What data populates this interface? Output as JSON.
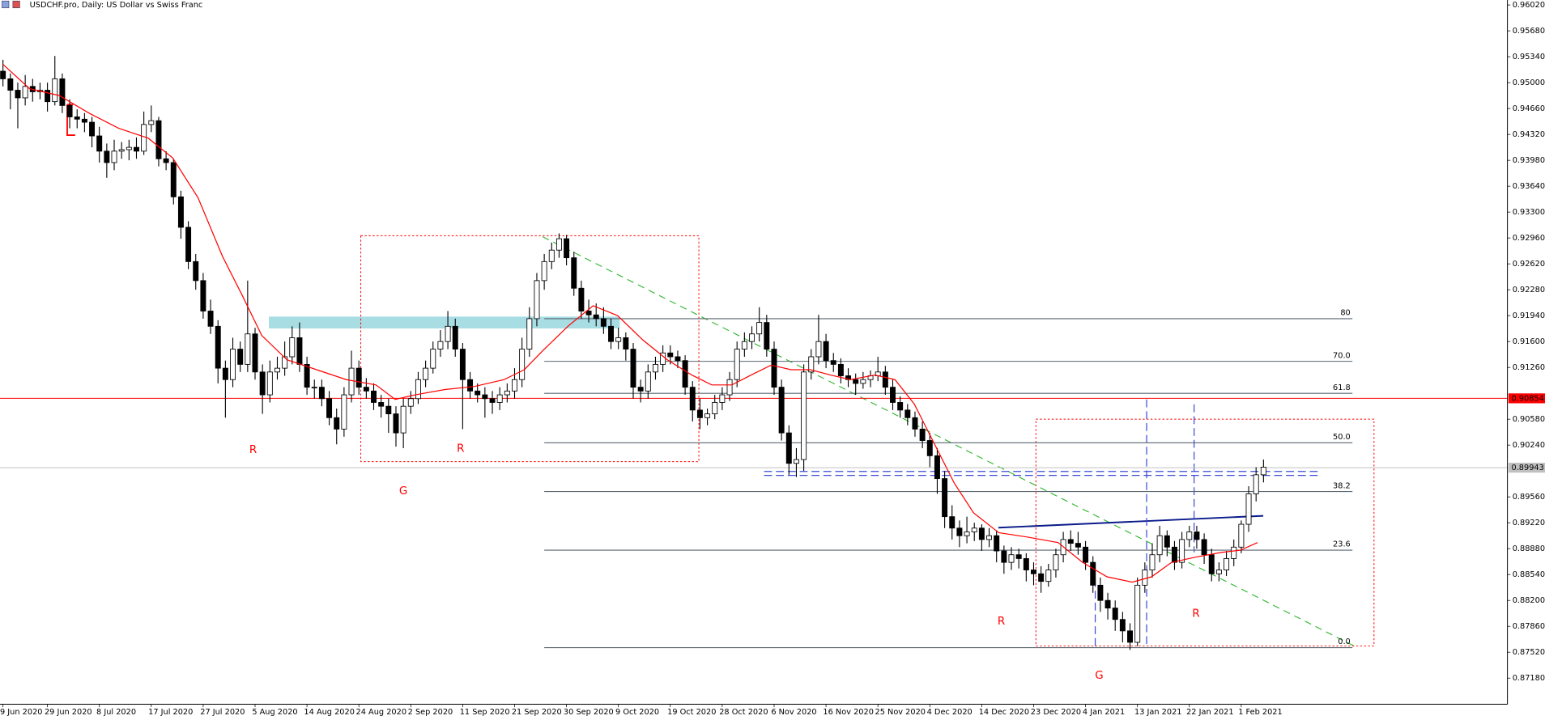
{
  "chart_data": {
    "type": "candlestick",
    "title": "USDCHF.pro, Daily:  US Dollar vs Swiss Franc",
    "xlim": [
      -0.4,
      202.9
    ],
    "ylim": [
      0.86837,
      0.96085
    ],
    "xticks": [
      {
        "value": 0,
        "label": "9 Jun 2020"
      },
      {
        "value": 6,
        "label": "29 Jun 2020"
      },
      {
        "value": 13,
        "label": "8 Jul 2020"
      },
      {
        "value": 20,
        "label": "17 Jul 2020"
      },
      {
        "value": 27,
        "label": "27 Jul 2020"
      },
      {
        "value": 34,
        "label": "5 Aug 2020"
      },
      {
        "value": 41,
        "label": "14 Aug 2020"
      },
      {
        "value": 48,
        "label": "24 Aug 2020"
      },
      {
        "value": 55,
        "label": "2 Sep 2020"
      },
      {
        "value": 62,
        "label": "11 Sep 2020"
      },
      {
        "value": 69,
        "label": "21 Sep 2020"
      },
      {
        "value": 76,
        "label": "30 Sep 2020"
      },
      {
        "value": 83,
        "label": "9 Oct 2020"
      },
      {
        "value": 90,
        "label": "19 Oct 2020"
      },
      {
        "value": 97,
        "label": "28 Oct 2020"
      },
      {
        "value": 104,
        "label": "6 Nov 2020"
      },
      {
        "value": 111,
        "label": "16 Nov 2020"
      },
      {
        "value": 118,
        "label": "25 Nov 2020"
      },
      {
        "value": 125,
        "label": "4 Dec 2020"
      },
      {
        "value": 132,
        "label": "14 Dec 2020"
      },
      {
        "value": 139,
        "label": "23 Dec 2020"
      },
      {
        "value": 146,
        "label": "4 Jan 2021"
      },
      {
        "value": 153,
        "label": "13 Jan 2021"
      },
      {
        "value": 160,
        "label": "22 Jan 2021"
      },
      {
        "value": 167,
        "label": "1 Feb 2021"
      }
    ],
    "yticks": [
      {
        "value": 0.9602,
        "label": "0.96020"
      },
      {
        "value": 0.9568,
        "label": "0.95680"
      },
      {
        "value": 0.9534,
        "label": "0.95340"
      },
      {
        "value": 0.95,
        "label": "0.95000"
      },
      {
        "value": 0.9466,
        "label": "0.94660"
      },
      {
        "value": 0.9432,
        "label": "0.94320"
      },
      {
        "value": 0.9398,
        "label": "0.93980"
      },
      {
        "value": 0.9364,
        "label": "0.93640"
      },
      {
        "value": 0.933,
        "label": "0.93300"
      },
      {
        "value": 0.9296,
        "label": "0.92960"
      },
      {
        "value": 0.9262,
        "label": "0.92620"
      },
      {
        "value": 0.9228,
        "label": "0.92280"
      },
      {
        "value": 0.9194,
        "label": "0.91940"
      },
      {
        "value": 0.916,
        "label": "0.91600"
      },
      {
        "value": 0.9126,
        "label": "0.91260"
      },
      {
        "value": 0.9058,
        "label": "0.90580"
      },
      {
        "value": 0.9024,
        "label": "0.90240"
      },
      {
        "value": 0.8956,
        "label": "0.89560"
      },
      {
        "value": 0.8922,
        "label": "0.89220"
      },
      {
        "value": 0.8888,
        "label": "0.88880"
      },
      {
        "value": 0.8854,
        "label": "0.88540"
      },
      {
        "value": 0.882,
        "label": "0.88200"
      },
      {
        "value": 0.8786,
        "label": "0.87860"
      },
      {
        "value": 0.8752,
        "label": "0.87520"
      },
      {
        "value": 0.8718,
        "label": "0.87180"
      }
    ],
    "up_color": "#ffffff",
    "down_color": "#000000",
    "ohlc": [
      [
        0.9515,
        0.953,
        0.9495,
        0.9505
      ],
      [
        0.9505,
        0.9512,
        0.9465,
        0.949
      ],
      [
        0.949,
        0.95,
        0.944,
        0.948
      ],
      [
        0.948,
        0.951,
        0.947,
        0.9495
      ],
      [
        0.9495,
        0.9505,
        0.9475,
        0.9488
      ],
      [
        0.9488,
        0.95,
        0.9478,
        0.949
      ],
      [
        0.949,
        0.95,
        0.9462,
        0.9475
      ],
      [
        0.9475,
        0.9535,
        0.947,
        0.9505
      ],
      [
        0.9505,
        0.9512,
        0.946,
        0.947
      ],
      [
        0.947,
        0.9478,
        0.944,
        0.9455
      ],
      [
        0.9455,
        0.9465,
        0.944,
        0.9452
      ],
      [
        0.9452,
        0.946,
        0.9435,
        0.9448
      ],
      [
        0.9448,
        0.9455,
        0.9415,
        0.943
      ],
      [
        0.943,
        0.9442,
        0.9395,
        0.941
      ],
      [
        0.941,
        0.942,
        0.9375,
        0.9395
      ],
      [
        0.9395,
        0.9425,
        0.9385,
        0.941
      ],
      [
        0.941,
        0.9422,
        0.94,
        0.9412
      ],
      [
        0.9412,
        0.9425,
        0.9398,
        0.9415
      ],
      [
        0.9415,
        0.9428,
        0.94,
        0.941
      ],
      [
        0.941,
        0.9462,
        0.9405,
        0.9445
      ],
      [
        0.9445,
        0.947,
        0.9435,
        0.945
      ],
      [
        0.945,
        0.9455,
        0.939,
        0.94
      ],
      [
        0.94,
        0.941,
        0.9385,
        0.9395
      ],
      [
        0.9395,
        0.94,
        0.934,
        0.935
      ],
      [
        0.935,
        0.9358,
        0.9295,
        0.931
      ],
      [
        0.931,
        0.9318,
        0.9255,
        0.9265
      ],
      [
        0.9265,
        0.9275,
        0.9228,
        0.924
      ],
      [
        0.924,
        0.925,
        0.919,
        0.92
      ],
      [
        0.92,
        0.9215,
        0.917,
        0.918
      ],
      [
        0.918,
        0.9188,
        0.9105,
        0.9125
      ],
      [
        0.9125,
        0.9135,
        0.906,
        0.911
      ],
      [
        0.911,
        0.9165,
        0.91,
        0.915
      ],
      [
        0.915,
        0.916,
        0.912,
        0.913
      ],
      [
        0.913,
        0.924,
        0.912,
        0.917
      ],
      [
        0.917,
        0.9178,
        0.911,
        0.912
      ],
      [
        0.912,
        0.913,
        0.9065,
        0.909
      ],
      [
        0.909,
        0.9135,
        0.908,
        0.912
      ],
      [
        0.912,
        0.914,
        0.911,
        0.9125
      ],
      [
        0.9125,
        0.916,
        0.9115,
        0.914
      ],
      [
        0.914,
        0.918,
        0.913,
        0.9165
      ],
      [
        0.9165,
        0.9185,
        0.912,
        0.913
      ],
      [
        0.913,
        0.914,
        0.909,
        0.91
      ],
      [
        0.91,
        0.911,
        0.9085,
        0.91
      ],
      [
        0.91,
        0.911,
        0.9075,
        0.9085
      ],
      [
        0.9085,
        0.9095,
        0.905,
        0.906
      ],
      [
        0.906,
        0.9072,
        0.9025,
        0.9045
      ],
      [
        0.9045,
        0.91,
        0.9035,
        0.909
      ],
      [
        0.909,
        0.9148,
        0.908,
        0.9125
      ],
      [
        0.9125,
        0.9135,
        0.909,
        0.91
      ],
      [
        0.91,
        0.9112,
        0.9085,
        0.9095
      ],
      [
        0.9095,
        0.9105,
        0.907,
        0.908
      ],
      [
        0.908,
        0.909,
        0.906,
        0.9075
      ],
      [
        0.9075,
        0.9085,
        0.904,
        0.9065
      ],
      [
        0.9065,
        0.9075,
        0.9022,
        0.904
      ],
      [
        0.904,
        0.9085,
        0.902,
        0.9075
      ],
      [
        0.9075,
        0.9095,
        0.9065,
        0.9085
      ],
      [
        0.9085,
        0.912,
        0.9078,
        0.911
      ],
      [
        0.911,
        0.9135,
        0.91,
        0.9125
      ],
      [
        0.9125,
        0.916,
        0.9118,
        0.915
      ],
      [
        0.915,
        0.9175,
        0.914,
        0.916
      ],
      [
        0.916,
        0.92,
        0.915,
        0.918
      ],
      [
        0.918,
        0.919,
        0.914,
        0.915
      ],
      [
        0.915,
        0.9158,
        0.9045,
        0.911
      ],
      [
        0.911,
        0.912,
        0.9085,
        0.9095
      ],
      [
        0.9095,
        0.9105,
        0.908,
        0.909
      ],
      [
        0.909,
        0.91,
        0.906,
        0.9085
      ],
      [
        0.9085,
        0.9095,
        0.9065,
        0.908
      ],
      [
        0.908,
        0.91,
        0.907,
        0.909
      ],
      [
        0.909,
        0.9105,
        0.908,
        0.9095
      ],
      [
        0.9095,
        0.9125,
        0.9085,
        0.911
      ],
      [
        0.911,
        0.9165,
        0.91,
        0.915
      ],
      [
        0.915,
        0.9205,
        0.914,
        0.919
      ],
      [
        0.919,
        0.925,
        0.918,
        0.924
      ],
      [
        0.924,
        0.9275,
        0.9228,
        0.9265
      ],
      [
        0.9265,
        0.929,
        0.9255,
        0.928
      ],
      [
        0.928,
        0.9302,
        0.927,
        0.9295
      ],
      [
        0.9295,
        0.93,
        0.926,
        0.927
      ],
      [
        0.927,
        0.9278,
        0.922,
        0.923
      ],
      [
        0.923,
        0.924,
        0.919,
        0.92
      ],
      [
        0.92,
        0.9215,
        0.9185,
        0.9195
      ],
      [
        0.9195,
        0.921,
        0.918,
        0.919
      ],
      [
        0.919,
        0.9205,
        0.917,
        0.918
      ],
      [
        0.918,
        0.919,
        0.915,
        0.916
      ],
      [
        0.916,
        0.9178,
        0.915,
        0.9165
      ],
      [
        0.9165,
        0.9172,
        0.9135,
        0.915
      ],
      [
        0.915,
        0.9158,
        0.9085,
        0.91
      ],
      [
        0.91,
        0.911,
        0.908,
        0.9095
      ],
      [
        0.9095,
        0.913,
        0.9085,
        0.912
      ],
      [
        0.912,
        0.914,
        0.911,
        0.913
      ],
      [
        0.913,
        0.9155,
        0.912,
        0.9145
      ],
      [
        0.9145,
        0.9155,
        0.913,
        0.914
      ],
      [
        0.914,
        0.9148,
        0.9125,
        0.9135
      ],
      [
        0.9135,
        0.9142,
        0.909,
        0.91
      ],
      [
        0.91,
        0.9108,
        0.9055,
        0.907
      ],
      [
        0.907,
        0.9085,
        0.9045,
        0.906
      ],
      [
        0.906,
        0.9072,
        0.905,
        0.9065
      ],
      [
        0.9065,
        0.909,
        0.9058,
        0.908
      ],
      [
        0.908,
        0.91,
        0.907,
        0.909
      ],
      [
        0.909,
        0.912,
        0.9082,
        0.911
      ],
      [
        0.911,
        0.916,
        0.91,
        0.915
      ],
      [
        0.915,
        0.9172,
        0.914,
        0.916
      ],
      [
        0.916,
        0.918,
        0.915,
        0.917
      ],
      [
        0.917,
        0.9205,
        0.916,
        0.9185
      ],
      [
        0.9185,
        0.9195,
        0.914,
        0.915
      ],
      [
        0.915,
        0.916,
        0.909,
        0.91
      ],
      [
        0.91,
        0.911,
        0.903,
        0.904
      ],
      [
        0.904,
        0.905,
        0.8985,
        0.9
      ],
      [
        0.9,
        0.902,
        0.8982,
        0.9005
      ],
      [
        0.9005,
        0.913,
        0.899,
        0.912
      ],
      [
        0.912,
        0.915,
        0.911,
        0.914
      ],
      [
        0.914,
        0.9195,
        0.913,
        0.916
      ],
      [
        0.916,
        0.917,
        0.9125,
        0.9135
      ],
      [
        0.9135,
        0.9145,
        0.912,
        0.913
      ],
      [
        0.913,
        0.9138,
        0.9105,
        0.9115
      ],
      [
        0.9115,
        0.9125,
        0.91,
        0.911
      ],
      [
        0.911,
        0.9118,
        0.909,
        0.9105
      ],
      [
        0.9105,
        0.912,
        0.9098,
        0.911
      ],
      [
        0.911,
        0.9122,
        0.91,
        0.9115
      ],
      [
        0.9115,
        0.914,
        0.9108,
        0.912
      ],
      [
        0.912,
        0.9128,
        0.909,
        0.91
      ],
      [
        0.91,
        0.911,
        0.907,
        0.908
      ],
      [
        0.908,
        0.9088,
        0.906,
        0.907
      ],
      [
        0.907,
        0.9078,
        0.905,
        0.906
      ],
      [
        0.906,
        0.9068,
        0.9035,
        0.9045
      ],
      [
        0.9045,
        0.9055,
        0.902,
        0.903
      ],
      [
        0.903,
        0.904,
        0.8995,
        0.901
      ],
      [
        0.901,
        0.902,
        0.896,
        0.898
      ],
      [
        0.898,
        0.899,
        0.8915,
        0.893
      ],
      [
        0.893,
        0.8945,
        0.89,
        0.8915
      ],
      [
        0.8915,
        0.8925,
        0.889,
        0.8905
      ],
      [
        0.8905,
        0.893,
        0.8895,
        0.891
      ],
      [
        0.891,
        0.8922,
        0.8898,
        0.8915
      ],
      [
        0.8915,
        0.892,
        0.8885,
        0.89
      ],
      [
        0.89,
        0.8915,
        0.889,
        0.8905
      ],
      [
        0.8905,
        0.8912,
        0.887,
        0.8885
      ],
      [
        0.8885,
        0.8892,
        0.8855,
        0.887
      ],
      [
        0.887,
        0.889,
        0.886,
        0.888
      ],
      [
        0.888,
        0.8888,
        0.8862,
        0.8875
      ],
      [
        0.8875,
        0.8882,
        0.8845,
        0.886
      ],
      [
        0.886,
        0.887,
        0.884,
        0.8855
      ],
      [
        0.8855,
        0.8865,
        0.883,
        0.8845
      ],
      [
        0.8845,
        0.8868,
        0.8838,
        0.886
      ],
      [
        0.886,
        0.8888,
        0.885,
        0.888
      ],
      [
        0.888,
        0.891,
        0.887,
        0.89
      ],
      [
        0.89,
        0.8912,
        0.8885,
        0.8895
      ],
      [
        0.8895,
        0.891,
        0.888,
        0.889
      ],
      [
        0.889,
        0.8898,
        0.886,
        0.887
      ],
      [
        0.887,
        0.8878,
        0.883,
        0.884
      ],
      [
        0.884,
        0.885,
        0.8805,
        0.882
      ],
      [
        0.882,
        0.883,
        0.8795,
        0.881
      ],
      [
        0.881,
        0.882,
        0.878,
        0.8795
      ],
      [
        0.8795,
        0.8805,
        0.8765,
        0.878
      ],
      [
        0.878,
        0.879,
        0.8755,
        0.8765
      ],
      [
        0.8765,
        0.885,
        0.876,
        0.884
      ],
      [
        0.884,
        0.887,
        0.883,
        0.886
      ],
      [
        0.886,
        0.8895,
        0.885,
        0.888
      ],
      [
        0.888,
        0.8918,
        0.887,
        0.8905
      ],
      [
        0.8905,
        0.8912,
        0.8878,
        0.889
      ],
      [
        0.889,
        0.8898,
        0.886,
        0.887
      ],
      [
        0.887,
        0.891,
        0.8862,
        0.89
      ],
      [
        0.89,
        0.8918,
        0.889,
        0.891
      ],
      [
        0.891,
        0.8918,
        0.8888,
        0.89
      ],
      [
        0.89,
        0.8908,
        0.8868,
        0.888
      ],
      [
        0.888,
        0.8888,
        0.8845,
        0.8855
      ],
      [
        0.8855,
        0.887,
        0.8845,
        0.886
      ],
      [
        0.886,
        0.8885,
        0.8852,
        0.8875
      ],
      [
        0.8875,
        0.89,
        0.8865,
        0.889
      ],
      [
        0.889,
        0.8925,
        0.8882,
        0.892
      ],
      [
        0.892,
        0.897,
        0.891,
        0.896
      ],
      [
        0.896,
        0.8995,
        0.895,
        0.8985
      ],
      [
        0.8985,
        0.9005,
        0.8975,
        0.8995
      ]
    ],
    "ma": {
      "color": "#ff0000",
      "x": [
        0,
        3.6,
        7.6,
        11.6,
        15.6,
        19.6,
        22.9,
        26.3,
        29.6,
        32.3,
        34.9,
        38.3,
        42.3,
        46.3,
        50.3,
        52.9,
        55.6,
        59.6,
        63.6,
        67.6,
        70.3,
        72.9,
        76.3,
        79.6,
        82.9,
        86.3,
        89.6,
        92.9,
        95.6,
        98.3,
        100.9,
        103.6,
        106.3,
        108.9,
        111.6,
        114.3,
        117.6,
        120.3,
        122.9,
        125.6,
        128.3,
        130.9,
        134.3,
        138.3,
        142.3,
        145.6,
        148.9,
        152.3,
        154.9,
        157.6,
        160.9,
        164.3,
        166.9,
        169.2
      ],
      "values": [
        0.9524,
        0.9492,
        0.9483,
        0.946,
        0.944,
        0.9427,
        0.9401,
        0.9349,
        0.9272,
        0.922,
        0.9168,
        0.9136,
        0.9123,
        0.911,
        0.9103,
        0.9084,
        0.909,
        0.9097,
        0.9101,
        0.911,
        0.9123,
        0.9149,
        0.9181,
        0.9207,
        0.9194,
        0.9162,
        0.9136,
        0.9116,
        0.9103,
        0.9103,
        0.9116,
        0.9129,
        0.9123,
        0.9123,
        0.9116,
        0.911,
        0.9116,
        0.911,
        0.9078,
        0.9026,
        0.8974,
        0.8935,
        0.8909,
        0.8903,
        0.8896,
        0.887,
        0.8851,
        0.8844,
        0.8851,
        0.887,
        0.8877,
        0.8883,
        0.8886,
        0.8896
      ]
    },
    "hlines": [
      {
        "value": 0.90854,
        "color": "#ff0000"
      },
      {
        "value": 0.89943,
        "color": "#c0c0c0"
      }
    ],
    "fib": {
      "color": "#5a6670",
      "start": 73,
      "end": 182,
      "labels": [
        "80",
        "70.0",
        "61.8",
        "50.0",
        "38.2",
        "23.6",
        "0.0"
      ],
      "prices": [
        0.919,
        0.9134,
        0.9092,
        0.9027,
        0.8963,
        0.8886,
        0.8758
      ]
    },
    "annotations": [
      "R",
      "R",
      "G",
      "R",
      "R",
      "G"
    ]
  }
}
